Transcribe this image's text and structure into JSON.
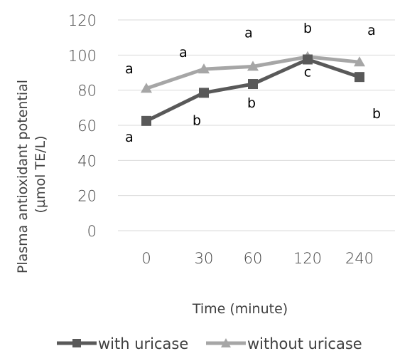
{
  "chart_data": {
    "type": "line",
    "categories": [
      "0",
      "30",
      "60",
      "120",
      "240"
    ],
    "xlabel": "Time (minute)",
    "ylabel_lines": [
      "Plasma antioxidant potential",
      "(µmol TE/L)"
    ],
    "ylim": [
      0,
      120
    ],
    "yticks": [
      0,
      20,
      40,
      60,
      80,
      100,
      120
    ],
    "grid": true,
    "legend_position": "bottom",
    "series": [
      {
        "name": "with uricase",
        "marker": "square",
        "color": "#595959",
        "values": [
          62.5,
          78.5,
          83.5,
          97.5,
          87.5
        ],
        "labels": [
          "a",
          "b",
          "b",
          "c",
          "b"
        ],
        "label_position": "below"
      },
      {
        "name": "without uricase",
        "marker": "triangle",
        "color": "#a6a6a6",
        "values": [
          81,
          92,
          93.5,
          99,
          96
        ],
        "labels": [
          "a",
          "a",
          "a",
          "b",
          "a"
        ],
        "label_position": "above"
      }
    ]
  }
}
